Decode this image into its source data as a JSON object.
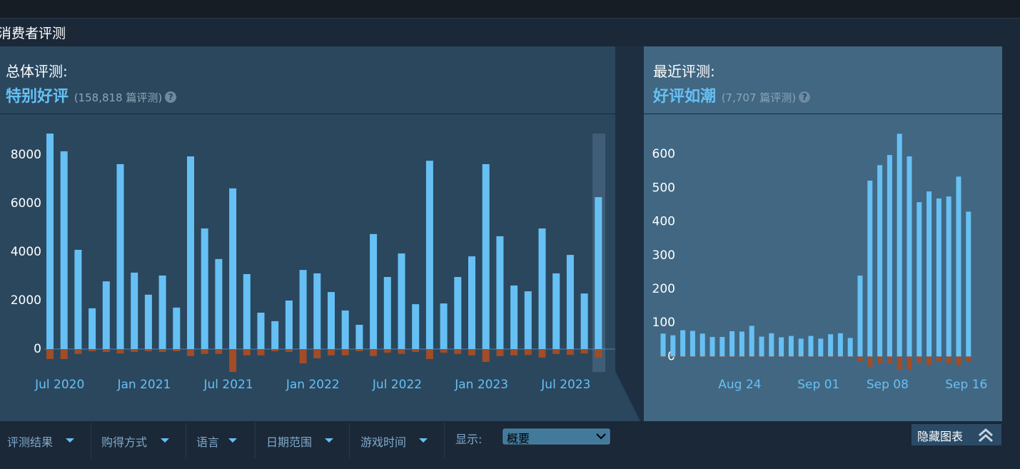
{
  "section_title": "消费者评测",
  "overall": {
    "label": "总体评测:",
    "rating": "特别好评",
    "count": "(158,818 篇评测)",
    "help": "?"
  },
  "recent": {
    "label": "最近评测:",
    "rating": "好评如潮",
    "count": "(7,707 篇评测)",
    "help": "?"
  },
  "chart_data": [
    {
      "type": "bar",
      "categories": [
        null,
        "Jul 2020",
        null,
        null,
        null,
        null,
        null,
        "Jan 2021",
        null,
        null,
        null,
        null,
        null,
        "Jul 2021",
        null,
        null,
        null,
        null,
        null,
        "Jan 2022",
        null,
        null,
        null,
        null,
        null,
        "Jul 2022",
        null,
        null,
        null,
        null,
        null,
        "Jan 2023",
        null,
        null,
        null,
        null,
        null,
        "Jul 2023",
        null,
        null
      ],
      "series": [
        {
          "color": "#66c0f4",
          "values": [
            8880,
            8150,
            4090,
            1680,
            2790,
            7620,
            3150,
            2240,
            3030,
            1710,
            7940,
            4970,
            3710,
            6620,
            3090,
            1500,
            1150,
            2000,
            3260,
            3120,
            2350,
            1590,
            1000,
            4740,
            2970,
            3940,
            1850,
            7760,
            1880,
            2970,
            3820,
            7620,
            4650,
            2620,
            2380,
            4970,
            3120,
            3880,
            2290,
            6260
          ]
        },
        {
          "color": "#a34c25",
          "values": [
            -410,
            -410,
            -200,
            -90,
            -120,
            -180,
            -120,
            -90,
            -120,
            -90,
            -290,
            -200,
            -200,
            -940,
            -260,
            -260,
            -90,
            -120,
            -590,
            -380,
            -260,
            -260,
            -90,
            -290,
            -150,
            -200,
            -120,
            -410,
            -150,
            -200,
            -260,
            -530,
            -290,
            -260,
            -240,
            -350,
            -200,
            -240,
            -180,
            -350
          ]
        }
      ],
      "ylim": [
        -1000,
        9000
      ],
      "yticks": [
        0,
        2000,
        4000,
        6000,
        8000
      ],
      "zero_line": true
    },
    {
      "type": "bar",
      "categories": [
        null,
        null,
        null,
        null,
        null,
        null,
        null,
        null,
        "Aug 24",
        null,
        null,
        null,
        null,
        null,
        null,
        null,
        "Sep 01",
        null,
        null,
        null,
        null,
        null,
        null,
        "Sep 08",
        null,
        null,
        null,
        null,
        null,
        null,
        null,
        "Sep 16"
      ],
      "series": [
        {
          "color": "#66c0f4",
          "values": [
            68,
            63,
            78,
            76,
            68,
            58,
            58,
            75,
            74,
            91,
            59,
            69,
            57,
            61,
            53,
            61,
            53,
            66,
            69,
            55,
            240,
            522,
            568,
            598,
            661,
            594,
            458,
            490,
            469,
            475,
            534,
            430
          ]
        },
        {
          "color": "#a34c25",
          "values": [
            -2,
            -2,
            -2,
            -2,
            -2,
            -2,
            -2,
            -2,
            -2,
            -3,
            -2,
            -2,
            -2,
            -2,
            -2,
            -2,
            -2,
            -2,
            -2,
            -2,
            -15,
            -30,
            -20,
            -20,
            -40,
            -38,
            -18,
            -25,
            -15,
            -20,
            -25,
            -15
          ]
        }
      ],
      "ylim": [
        -50,
        700
      ],
      "yticks": [
        0,
        100,
        200,
        300,
        400,
        500,
        600
      ],
      "zero_line": false
    }
  ],
  "filters": [
    "评测结果",
    "购得方式",
    "语言",
    "日期范围",
    "游戏时间"
  ],
  "display": {
    "label": "显示:",
    "value": "概要"
  },
  "hide_chart": "隐藏图表"
}
